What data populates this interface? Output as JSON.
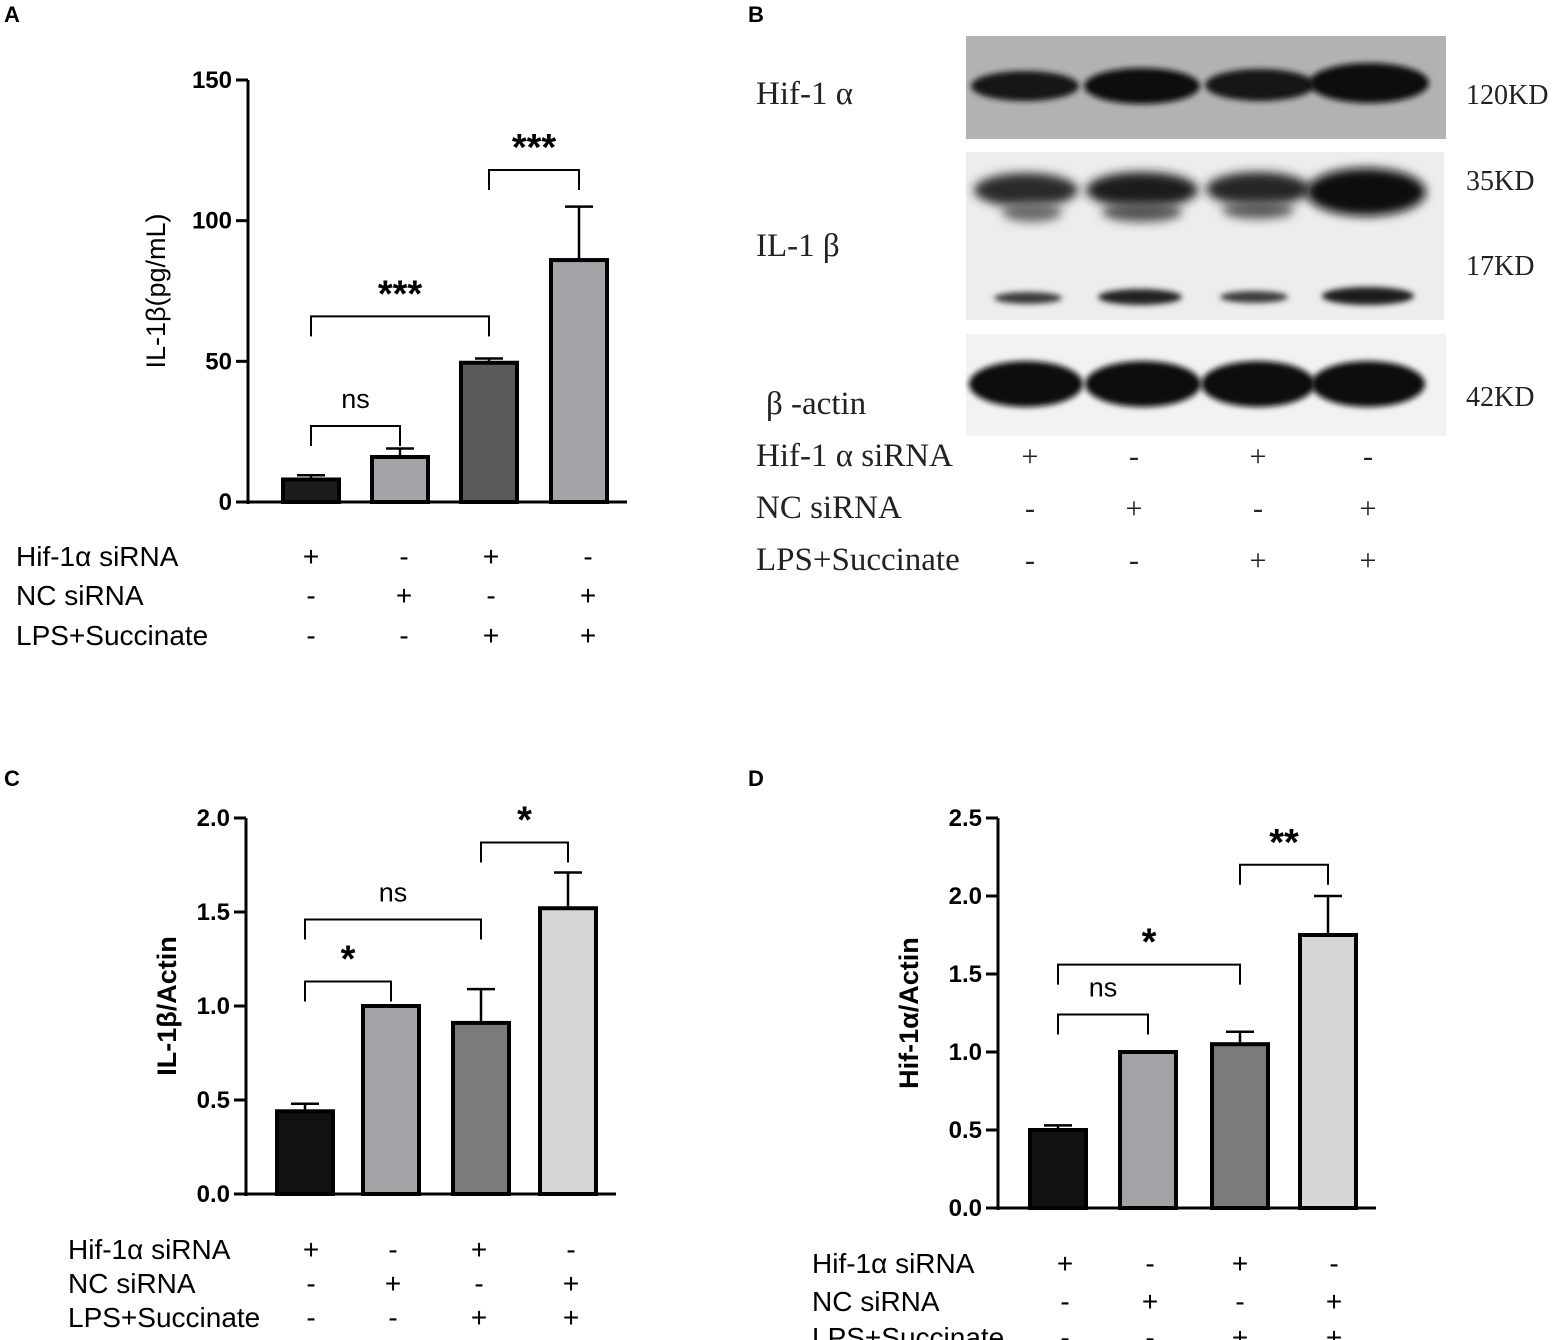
{
  "chart_data": [
    {
      "panel": "A",
      "type": "bar",
      "ylabel": "IL-1β(pg/mL)",
      "ylim": [
        0,
        150
      ],
      "yticks": [
        "0",
        "50",
        "100",
        "150"
      ],
      "values": [
        8,
        16,
        49.5,
        86
      ],
      "errors": [
        1.5,
        3,
        1.5,
        19
      ],
      "colors": [
        "#1c1c1c",
        "#a4a4a8",
        "#5a5a5a",
        "#a4a4a8"
      ],
      "rows": [
        {
          "label": "Hif-1α siRNA",
          "signs": [
            "+",
            "-",
            "+",
            "-"
          ]
        },
        {
          "label": "NC siRNA",
          "signs": [
            "-",
            "+",
            "-",
            "+"
          ]
        },
        {
          "label": "LPS+Succinate",
          "signs": [
            "-",
            "-",
            "+",
            "+"
          ]
        }
      ],
      "annotations": [
        {
          "from": 0,
          "to": 1,
          "y": 27,
          "label": "ns"
        },
        {
          "from": 0,
          "to": 2,
          "y": 66,
          "label": "***"
        },
        {
          "from": 2,
          "to": 3,
          "y": 118,
          "label": "***"
        }
      ]
    },
    {
      "panel": "C",
      "type": "bar",
      "ylabel": "IL-1β/Actin",
      "ylim": [
        0,
        2.0
      ],
      "yticks": [
        "0.0",
        "0.5",
        "1.0",
        "1.5",
        "2.0"
      ],
      "values": [
        0.44,
        1.0,
        0.91,
        1.52
      ],
      "errors": [
        0.04,
        0,
        0.18,
        0.19
      ],
      "colors": [
        "#111111",
        "#a3a3a7",
        "#7b7b7b",
        "#d6d6d6"
      ],
      "rows": [
        {
          "label": "Hif-1α siRNA",
          "signs": [
            "+",
            "-",
            "+",
            "-"
          ]
        },
        {
          "label": "NC siRNA",
          "signs": [
            "-",
            "+",
            "-",
            "+"
          ]
        },
        {
          "label": "LPS+Succinate",
          "signs": [
            "-",
            "-",
            "+",
            "+"
          ]
        }
      ],
      "annotations": [
        {
          "from": 0,
          "to": 1,
          "y": 1.13,
          "label": "*"
        },
        {
          "from": 0,
          "to": 2,
          "y": 1.46,
          "label": "ns"
        },
        {
          "from": 2,
          "to": 3,
          "y": 1.87,
          "label": "*"
        }
      ]
    },
    {
      "panel": "D",
      "type": "bar",
      "ylabel": "Hif-1α/Actin",
      "ylim": [
        0,
        2.5
      ],
      "yticks": [
        "0.0",
        "0.5",
        "1.0",
        "1.5",
        "2.0",
        "2.5"
      ],
      "values": [
        0.5,
        1.0,
        1.05,
        1.75
      ],
      "errors": [
        0.03,
        0,
        0.08,
        0.25
      ],
      "colors": [
        "#111111",
        "#a3a3a7",
        "#7b7b7b",
        "#d6d6d6"
      ],
      "rows": [
        {
          "label": "Hif-1α siRNA",
          "signs": [
            "+",
            "-",
            "+",
            "-"
          ]
        },
        {
          "label": "NC siRNA",
          "signs": [
            "-",
            "+",
            "-",
            "+"
          ]
        },
        {
          "label": "LPS+Succinate",
          "signs": [
            "-",
            "-",
            "+",
            "+"
          ]
        }
      ],
      "annotations": [
        {
          "from": 0,
          "to": 1,
          "y": 1.24,
          "label": "ns"
        },
        {
          "from": 0,
          "to": 2,
          "y": 1.56,
          "label": "*"
        },
        {
          "from": 2,
          "to": 3,
          "y": 2.2,
          "label": "**"
        }
      ]
    }
  ],
  "panel_labels": {
    "a": "A",
    "b": "B",
    "c": "C",
    "d": "D"
  },
  "blot": {
    "bands": [
      {
        "label": "Hif-1 α",
        "kd": [
          "120KD"
        ]
      },
      {
        "label": "IL-1 β",
        "kd": [
          "35KD",
          "17KD"
        ]
      },
      {
        "label": "β -actin",
        "kd": [
          "42KD"
        ]
      }
    ],
    "rows": [
      {
        "label": "Hif-1 α  siRNA",
        "signs": [
          "+",
          "-",
          "+",
          "-"
        ]
      },
      {
        "label": "NC siRNA",
        "signs": [
          "-",
          "+",
          "-",
          "+"
        ]
      },
      {
        "label": "LPS+Succinate",
        "signs": [
          "-",
          "-",
          "+",
          "+"
        ]
      }
    ]
  }
}
